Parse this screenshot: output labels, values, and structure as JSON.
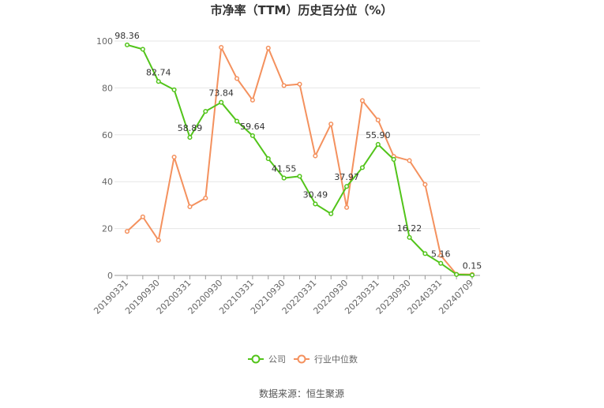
{
  "chart_data": {
    "type": "line",
    "title": "市净率（TTM）历史百分位（%）",
    "xlabel": "",
    "ylabel": "",
    "ylim": [
      0,
      100
    ],
    "yticks": [
      0,
      20,
      40,
      60,
      80,
      100
    ],
    "grid": true,
    "legend_position": "bottom",
    "x": [
      "20190331",
      "20190630",
      "20190930",
      "20191231",
      "20200331",
      "20200630",
      "20200930",
      "20201231",
      "20210331",
      "20210630",
      "20210930",
      "20211231",
      "20220331",
      "20220630",
      "20220930",
      "20221231",
      "20230331",
      "20230630",
      "20230930",
      "20231231",
      "20240331",
      "20240630",
      "20240709"
    ],
    "x_tick_labels": [
      "20190331",
      "20190930",
      "20200331",
      "20200930",
      "20210331",
      "20210930",
      "20220331",
      "20220930",
      "20230331",
      "20230930",
      "20240331",
      "20240709"
    ],
    "series": [
      {
        "name": "公司",
        "color": "#52c41a",
        "values": [
          98.36,
          96.5,
          82.74,
          79.2,
          58.89,
          70.0,
          73.84,
          65.8,
          59.64,
          49.8,
          41.55,
          42.3,
          30.49,
          26.3,
          37.97,
          46.0,
          55.9,
          49.5,
          16.22,
          9.3,
          5.16,
          0.4,
          0.15
        ],
        "labels": [
          "98.36",
          "",
          "82.74",
          "",
          "58.89",
          "",
          "73.84",
          "",
          "59.64",
          "",
          "41.55",
          "",
          "30.49",
          "",
          "37.97",
          "",
          "55.90",
          "",
          "16.22",
          "",
          "5.16",
          "",
          "0.15"
        ]
      },
      {
        "name": "行业中位数",
        "color": "#f4915e",
        "values": [
          18.8,
          25.0,
          15.0,
          50.5,
          29.3,
          33.0,
          97.3,
          84.0,
          74.8,
          97.0,
          81.0,
          81.6,
          51.0,
          64.6,
          29.0,
          74.6,
          66.3,
          50.8,
          49.0,
          38.8,
          8.5,
          0.5,
          0.4
        ]
      }
    ]
  },
  "source_text": "数据来源：恒生聚源"
}
